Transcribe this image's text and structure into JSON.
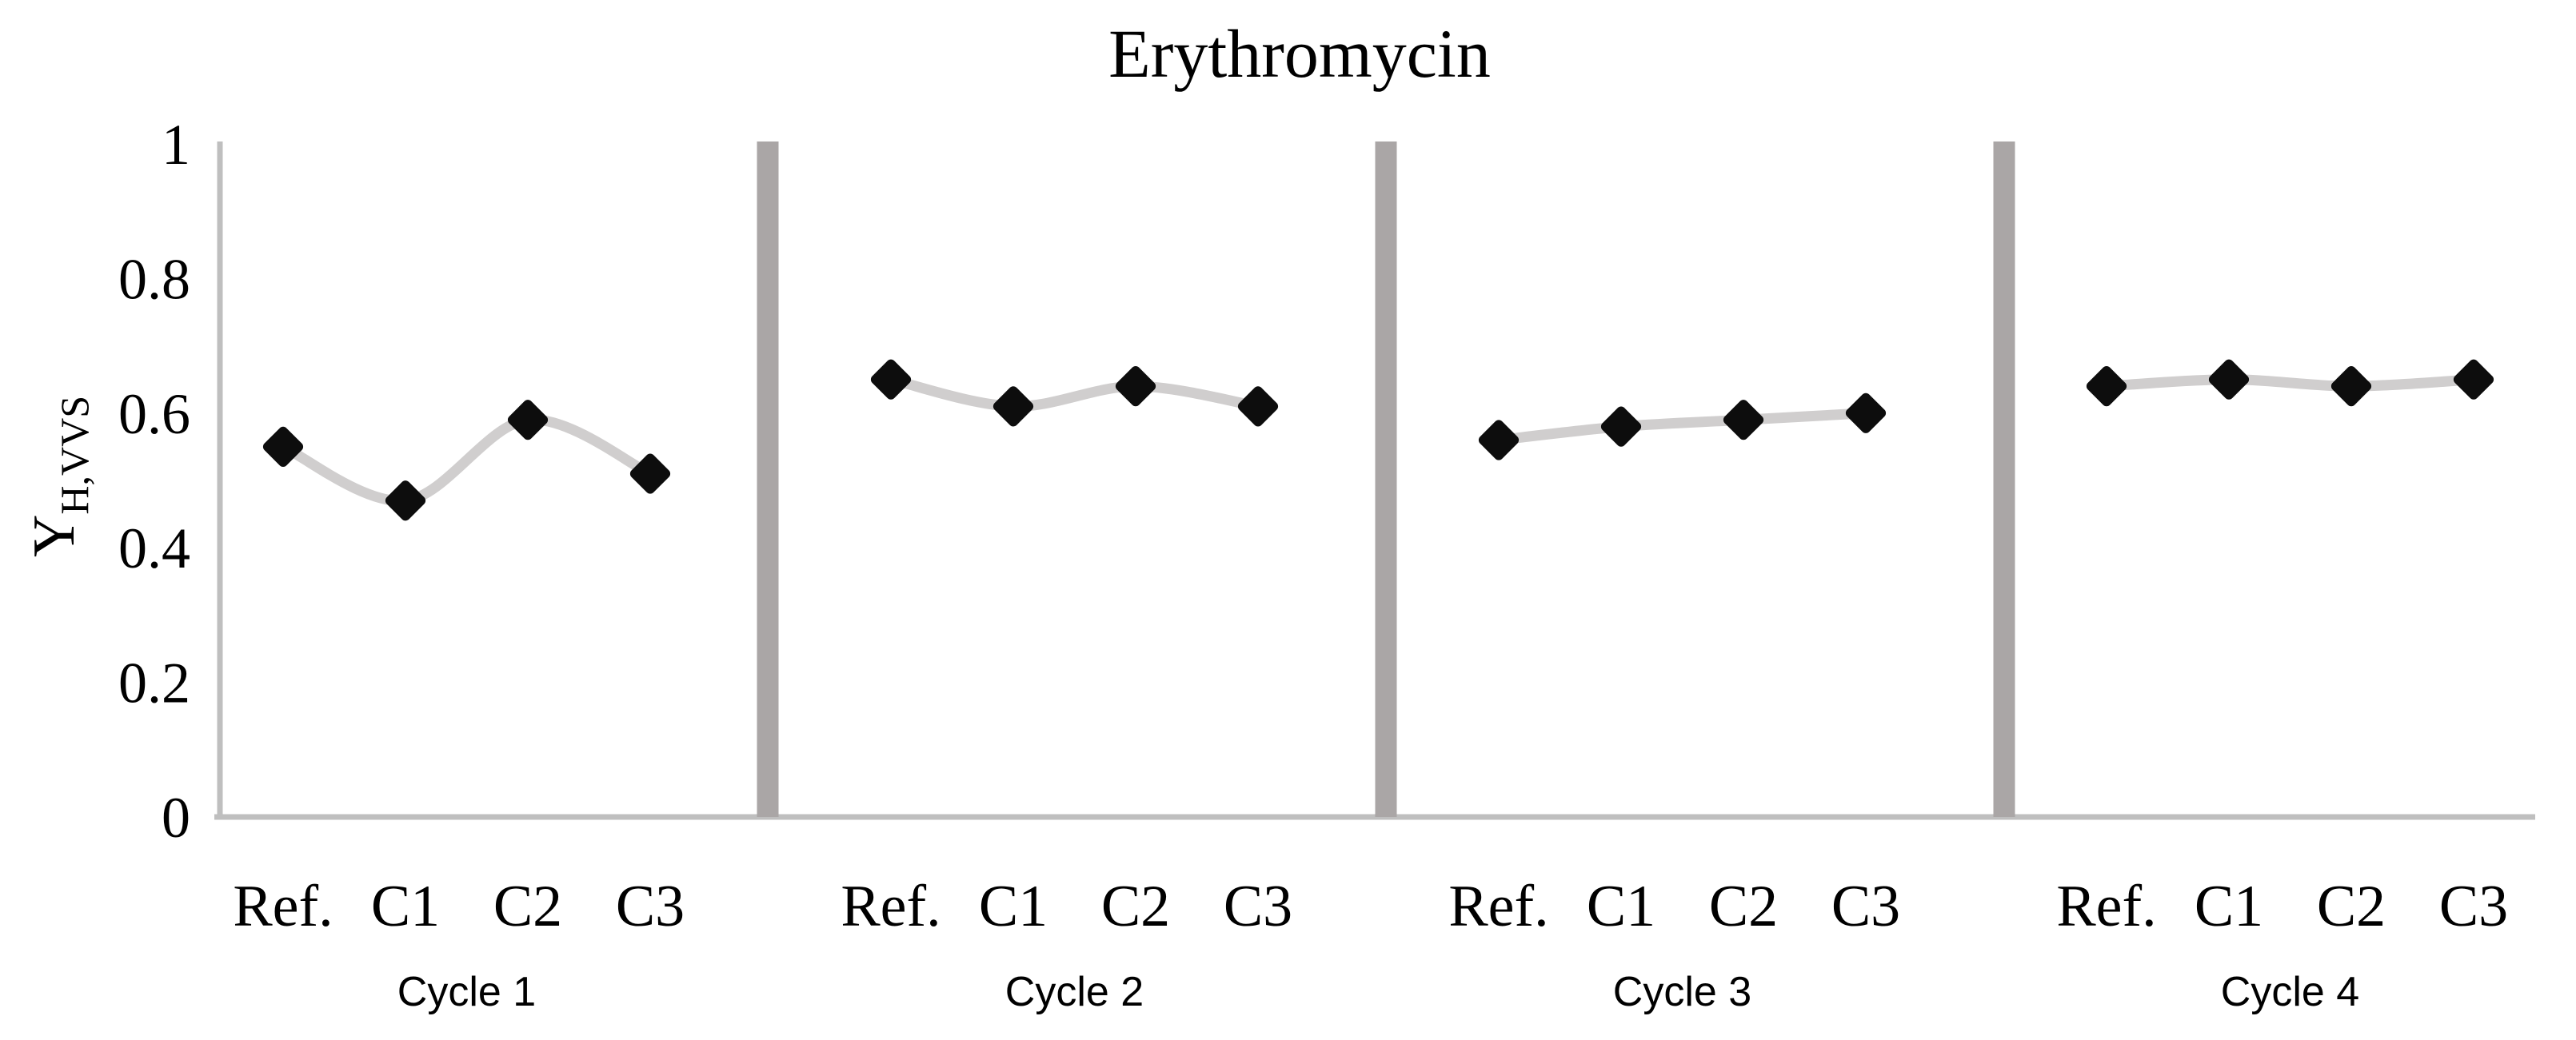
{
  "title": "Erythromycin",
  "chart_data": {
    "type": "line",
    "title": "Erythromycin",
    "ylabel_main": "Y",
    "ylabel_sub": "H,VVS",
    "ylim": [
      0,
      1
    ],
    "y_ticks": [
      "1",
      "0.8",
      "0.6",
      "0.4",
      "0.2",
      "0"
    ],
    "categories": [
      "Ref.",
      "C1",
      "C2",
      "C3"
    ],
    "panels": [
      {
        "label": "Cycle 1",
        "values": [
          0.55,
          0.47,
          0.59,
          0.51
        ]
      },
      {
        "label": "Cycle 2",
        "values": [
          0.65,
          0.61,
          0.64,
          0.61
        ]
      },
      {
        "label": "Cycle 3",
        "values": [
          0.56,
          0.58,
          0.59,
          0.6
        ]
      },
      {
        "label": "Cycle 4",
        "values": [
          0.64,
          0.65,
          0.64,
          0.65
        ]
      }
    ],
    "marker": "diamond",
    "line_style": "smooth",
    "grid": "off",
    "legend": "none",
    "colors": {
      "marker": "#0d0d0d",
      "line": "#d0cece",
      "separator": "#aaa6a6",
      "axis": "#bfbfbf",
      "text": "#000000"
    }
  }
}
